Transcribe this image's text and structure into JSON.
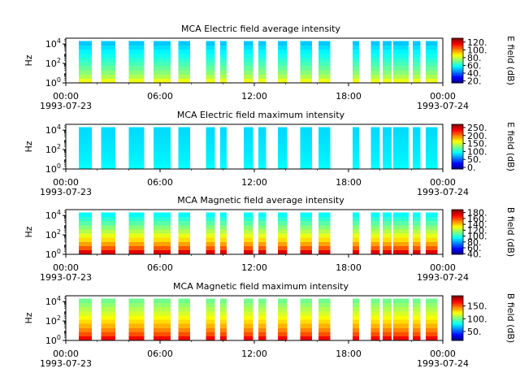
{
  "chart_data": [
    {
      "type": "heatmap",
      "title": "MCA  Electric field average intensity",
      "ylabel": "Hz",
      "ytick_labels": [
        "10^0",
        "10^2",
        "10^4"
      ],
      "xtick_labels": [
        "00:00",
        "06:00",
        "12:00",
        "18:00",
        "00:00"
      ],
      "x_date_labels": [
        "1993-07-23",
        "1993-07-24"
      ],
      "x_range": [
        "1993-07-23 00:00",
        "1993-07-24 00:00"
      ],
      "y_range_log10": [
        0,
        4.6
      ],
      "colorbar_label": "E field (dB)",
      "colorbar_ticks": [
        20,
        40,
        60,
        80,
        100,
        120
      ],
      "colorbar_tick_labels": [
        "20.",
        "40.",
        "60.",
        "80.",
        "100.",
        "120."
      ],
      "colorbar_range": [
        15,
        130
      ],
      "colormap": "jet",
      "low_freq_value": 85,
      "high_freq_value": 52,
      "spectrogram_intervals": [
        [
          "00:50",
          "01:40"
        ],
        [
          "02:15",
          "03:10"
        ],
        [
          "04:00",
          "05:00"
        ],
        [
          "05:35",
          "06:40"
        ],
        [
          "07:10",
          "07:55"
        ],
        [
          "08:55",
          "09:30"
        ],
        [
          "09:50",
          "10:15"
        ],
        [
          "11:20",
          "11:55"
        ],
        [
          "12:15",
          "12:45"
        ],
        [
          "13:30",
          "14:05"
        ],
        [
          "14:55",
          "15:40"
        ],
        [
          "16:05",
          "16:50"
        ],
        [
          "18:15",
          "18:40"
        ],
        [
          "19:25",
          "20:00"
        ],
        [
          "20:10",
          "20:45"
        ],
        [
          "20:50",
          "21:50"
        ],
        [
          "22:05",
          "22:35"
        ],
        [
          "22:55",
          "23:40"
        ]
      ]
    },
    {
      "type": "heatmap",
      "title": "MCA  Electric field maximum intensity",
      "ylabel": "Hz",
      "ytick_labels": [
        "10^0",
        "10^2",
        "10^4"
      ],
      "xtick_labels": [
        "00:00",
        "06:00",
        "12:00",
        "18:00",
        "00:00"
      ],
      "x_date_labels": [
        "1993-07-23",
        "1993-07-24"
      ],
      "x_range": [
        "1993-07-23 00:00",
        "1993-07-24 00:00"
      ],
      "y_range_log10": [
        0,
        4.6
      ],
      "colorbar_label": "E field (dB)",
      "colorbar_ticks": [
        0,
        50,
        100,
        150,
        200,
        250
      ],
      "colorbar_tick_labels": [
        "0.",
        "50.",
        "100.",
        "150.",
        "200.",
        "250."
      ],
      "colorbar_range": [
        -10,
        270
      ],
      "colormap": "jet",
      "low_freq_value": 95,
      "high_freq_value": 85,
      "spectrogram_intervals": [
        [
          "00:50",
          "01:40"
        ],
        [
          "02:15",
          "03:10"
        ],
        [
          "04:00",
          "05:00"
        ],
        [
          "05:35",
          "06:40"
        ],
        [
          "07:10",
          "07:55"
        ],
        [
          "08:55",
          "09:30"
        ],
        [
          "09:50",
          "10:15"
        ],
        [
          "11:20",
          "11:55"
        ],
        [
          "12:15",
          "12:45"
        ],
        [
          "13:30",
          "14:05"
        ],
        [
          "14:55",
          "15:40"
        ],
        [
          "16:05",
          "16:50"
        ],
        [
          "18:15",
          "18:40"
        ],
        [
          "19:25",
          "20:00"
        ],
        [
          "20:10",
          "20:45"
        ],
        [
          "20:50",
          "21:50"
        ],
        [
          "22:05",
          "22:35"
        ],
        [
          "22:55",
          "23:40"
        ]
      ]
    },
    {
      "type": "heatmap",
      "title": "MCA  Magnetic field average intensity",
      "ylabel": "Hz",
      "ytick_labels": [
        "10^0",
        "10^2",
        "10^4"
      ],
      "xtick_labels": [
        "00:00",
        "06:00",
        "12:00",
        "18:00",
        "00:00"
      ],
      "x_date_labels": [
        "1993-07-23",
        "1993-07-24"
      ],
      "x_range": [
        "1993-07-23 00:00",
        "1993-07-24 00:00"
      ],
      "y_range_log10": [
        0,
        4.6
      ],
      "colorbar_label": "B field (dB)",
      "colorbar_ticks": [
        40,
        60,
        80,
        100,
        120,
        140,
        160,
        180
      ],
      "colorbar_tick_labels": [
        "40.",
        "60.",
        "80.",
        "100.",
        "120.",
        "140.",
        "160.",
        "180."
      ],
      "colorbar_range": [
        38,
        190
      ],
      "colormap": "jet",
      "low_freq_value": 175,
      "high_freq_value": 95,
      "spectrogram_intervals": [
        [
          "00:50",
          "01:40"
        ],
        [
          "02:15",
          "03:10"
        ],
        [
          "04:00",
          "05:00"
        ],
        [
          "05:35",
          "06:40"
        ],
        [
          "07:10",
          "07:55"
        ],
        [
          "08:55",
          "09:30"
        ],
        [
          "09:50",
          "10:15"
        ],
        [
          "11:20",
          "11:55"
        ],
        [
          "12:15",
          "12:45"
        ],
        [
          "13:30",
          "14:05"
        ],
        [
          "14:55",
          "15:40"
        ],
        [
          "16:05",
          "16:50"
        ],
        [
          "18:15",
          "18:40"
        ],
        [
          "19:25",
          "20:00"
        ],
        [
          "20:10",
          "20:45"
        ],
        [
          "20:50",
          "21:50"
        ],
        [
          "22:05",
          "22:35"
        ],
        [
          "22:55",
          "23:40"
        ]
      ]
    },
    {
      "type": "heatmap",
      "title": "MCA  Magnetic field maximum intensity",
      "ylabel": "Hz",
      "ytick_labels": [
        "10^0",
        "10^2",
        "10^4"
      ],
      "xtick_labels": [
        "00:00",
        "06:00",
        "12:00",
        "18:00",
        "00:00"
      ],
      "x_date_labels": [
        "1993-07-23",
        "1993-07-24"
      ],
      "x_range": [
        "1993-07-23 00:00",
        "1993-07-24 00:00"
      ],
      "y_range_log10": [
        0,
        4.6
      ],
      "colorbar_label": "B field (dB)",
      "colorbar_ticks": [
        50,
        100,
        150
      ],
      "colorbar_tick_labels": [
        "50.",
        "100.",
        "150."
      ],
      "colorbar_range": [
        15,
        190
      ],
      "colormap": "jet",
      "low_freq_value": 170,
      "high_freq_value": 100,
      "spectrogram_intervals": [
        [
          "00:50",
          "01:40"
        ],
        [
          "02:15",
          "03:10"
        ],
        [
          "04:00",
          "05:00"
        ],
        [
          "05:35",
          "06:40"
        ],
        [
          "07:10",
          "07:55"
        ],
        [
          "08:55",
          "09:30"
        ],
        [
          "09:50",
          "10:15"
        ],
        [
          "11:20",
          "11:55"
        ],
        [
          "12:15",
          "12:45"
        ],
        [
          "13:30",
          "14:05"
        ],
        [
          "14:55",
          "15:40"
        ],
        [
          "16:05",
          "16:50"
        ],
        [
          "18:15",
          "18:40"
        ],
        [
          "19:25",
          "20:00"
        ],
        [
          "20:10",
          "20:45"
        ],
        [
          "20:50",
          "21:50"
        ],
        [
          "22:05",
          "22:35"
        ],
        [
          "22:55",
          "23:40"
        ]
      ]
    }
  ]
}
